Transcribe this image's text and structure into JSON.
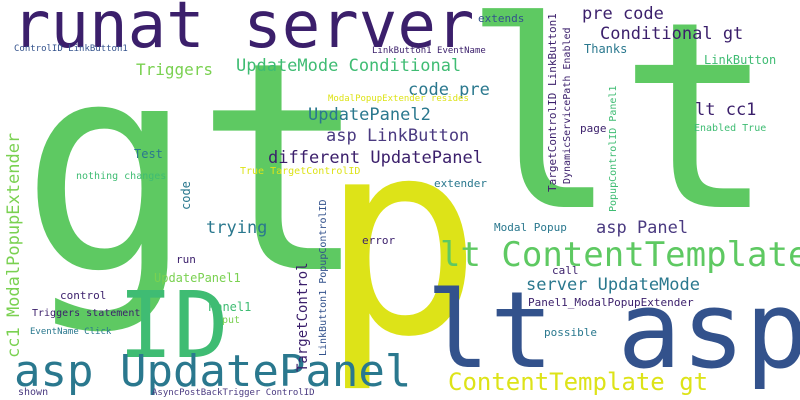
{
  "palette": {
    "purple": "#3b1f6b",
    "indigo": "#4a3a80",
    "blue": "#33528c",
    "teal": "#2a788e",
    "teal_light": "#21918c",
    "green": "#3fbc73",
    "green_light": "#5ec962",
    "lime": "#7ad151",
    "yellow": "#dde318",
    "background": "#ffffff"
  },
  "words": [
    "gt",
    "lt",
    "p",
    "ID",
    "asp",
    "lt asp",
    "runat server",
    "asp UpdatePanel",
    "lt ContentTemplate",
    "ContentTemplate gt",
    "Conditional gt",
    "pre code",
    "Triggers",
    "UpdateMode Conditional",
    "code pre",
    "UpdatePanel2",
    "asp LinkButton",
    "different UpdatePanel",
    "trying",
    "asp Panel",
    "server UpdateMode",
    "lt cc1",
    "Test",
    "LinkButton",
    "Thanks",
    "extends",
    "ControlID LinkButton1",
    "LinkButton1 EventName",
    "ModalPopupExtender resides",
    "nothing changes",
    "True TargetControlID",
    "extender",
    "code",
    "cc1 ModalPopupExtender",
    "TargetControl",
    "LinkButton1 PopupControlID",
    "Modal Popup",
    "error",
    "call",
    "run",
    "UpdatePanel1",
    "control",
    "Panel1",
    "Triggers statement",
    "put",
    "EventName Click",
    "shown",
    "AsyncPostBackTrigger ControlID",
    "Panel1_ModalPopupExtender",
    "possible",
    "page",
    "Enabled True",
    "TargetControlID LinkButton1",
    "DynamicServicePath Enabled",
    "PopupControlID Panel1"
  ]
}
